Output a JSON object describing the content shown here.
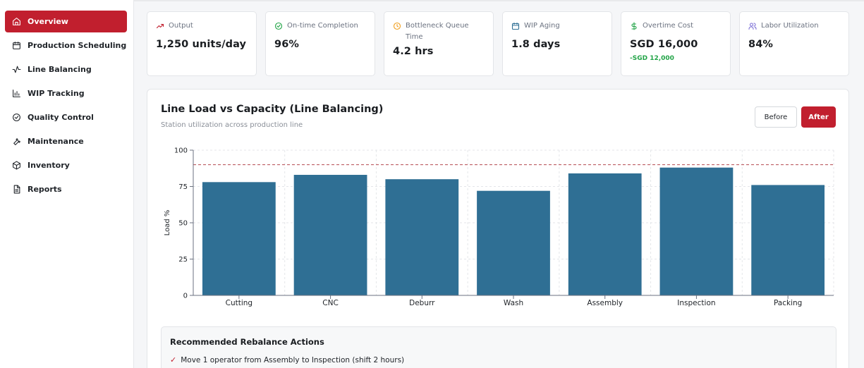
{
  "sidebar": {
    "items": [
      {
        "label": "Overview",
        "icon": "home-icon",
        "active": true
      },
      {
        "label": "Production Scheduling",
        "icon": "calendar-icon"
      },
      {
        "label": "Line Balancing",
        "icon": "activity-icon"
      },
      {
        "label": "WIP Tracking",
        "icon": "bar-chart-icon"
      },
      {
        "label": "Quality Control",
        "icon": "check-circle-icon"
      },
      {
        "label": "Maintenance",
        "icon": "wrench-icon"
      },
      {
        "label": "Inventory",
        "icon": "box-icon"
      },
      {
        "label": "Reports",
        "icon": "document-icon"
      }
    ]
  },
  "kpis": [
    {
      "label": "Output",
      "value": "1,250 units/day",
      "icon": "trending-up-icon",
      "icon_color": "#c11f2e"
    },
    {
      "label": "On-time Completion",
      "value": "96%",
      "icon": "check-circle-icon",
      "icon_color": "#22a447"
    },
    {
      "label": "Bottleneck Queue Time",
      "value": "4.2 hrs",
      "icon": "clock-icon",
      "icon_color": "#f0a020"
    },
    {
      "label": "WIP Aging",
      "value": "1.8 days",
      "icon": "calendar-icon",
      "icon_color": "#2f6f94"
    },
    {
      "label": "Overtime Cost",
      "value": "SGD 16,000",
      "sub": "-SGD 12,000",
      "icon": "dollar-icon",
      "icon_color": "#22a447"
    },
    {
      "label": "Labor Utilization",
      "value": "84%",
      "icon": "users-icon",
      "icon_color": "#7c6fd6"
    }
  ],
  "chart_card": {
    "title": "Line Load vs Capacity (Line Balancing)",
    "subtitle": "Station utilization across production line",
    "before_label": "Before",
    "after_label": "After"
  },
  "chart_data": {
    "type": "bar",
    "categories": [
      "Cutting",
      "CNC",
      "Deburr",
      "Wash",
      "Assembly",
      "Inspection",
      "Packing"
    ],
    "values": [
      78,
      83,
      80,
      72,
      84,
      88,
      76
    ],
    "ylabel": "Load %",
    "xlabel": "",
    "ylim": [
      0,
      100
    ],
    "yticks": [
      0,
      25,
      50,
      75,
      100
    ],
    "capacity_line": 90,
    "bar_color": "#2f6f94",
    "capacity_color": "#b4474f",
    "grid": true
  },
  "actions": {
    "title": "Recommended Rebalance Actions",
    "items": [
      "Move 1 operator from Assembly to Inspection (shift 2 hours)"
    ]
  }
}
